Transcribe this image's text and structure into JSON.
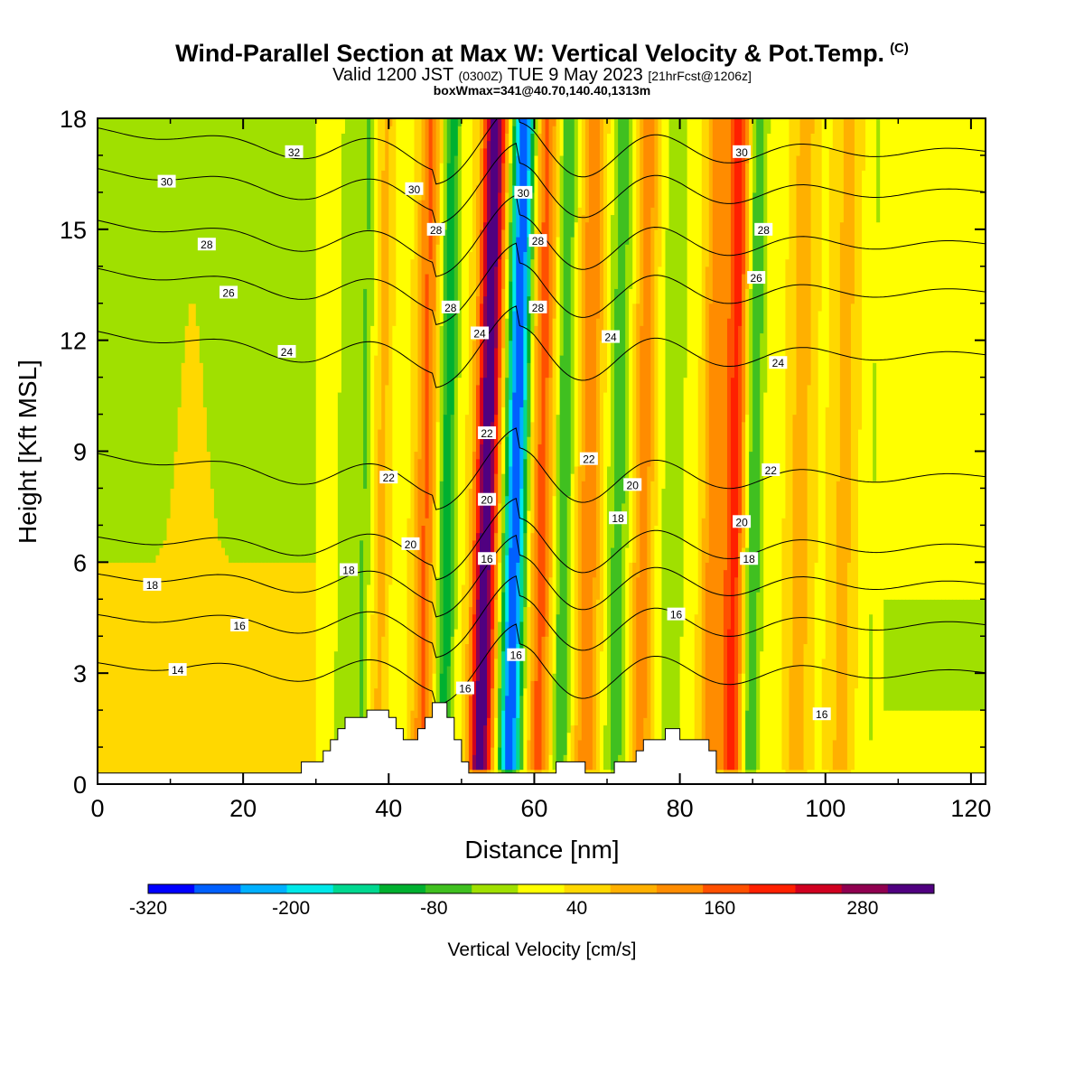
{
  "header": {
    "title": "Wind-Parallel Section at Max W: Vertical Velocity & Pot.Temp.",
    "copyright": "(C)",
    "valid_main": "Valid 1200 JST",
    "valid_utc": "(0300Z)",
    "valid_date": "TUE 9 May 2023",
    "forecast": "[21hrFcst@1206z]",
    "box_info": "boxWmax=341@40.70,140.40,1313m"
  },
  "chart_data": {
    "type": "heatmap",
    "xlabel": "Distance [nm]",
    "ylabel": "Height [Kft MSL]",
    "xlim": [
      0,
      122
    ],
    "ylim": [
      0,
      18
    ],
    "x_ticks": [
      "0",
      "20",
      "40",
      "60",
      "80",
      "100",
      "120"
    ],
    "y_ticks": [
      "0",
      "3",
      "6",
      "9",
      "12",
      "15",
      "18"
    ],
    "colorbar": {
      "label": "Vertical Velocity [cm/s]",
      "tick_labels": [
        "-320",
        "-200",
        "-80",
        "40",
        "160",
        "280"
      ],
      "bounds": [
        -320,
        340
      ],
      "colors": [
        "#0000ff",
        "#0060ff",
        "#00b0ff",
        "#00e8e8",
        "#00d890",
        "#00b030",
        "#40c020",
        "#a0e000",
        "#ffff00",
        "#ffd800",
        "#ffb000",
        "#ff8c00",
        "#ff5000",
        "#ff2000",
        "#d00020",
        "#900050",
        "#500080"
      ]
    },
    "velocity_features": [
      {
        "x": 52.5,
        "w": 1.6,
        "value": 320
      },
      {
        "x": 56.5,
        "w": 1.5,
        "value": -300
      },
      {
        "x": 47.5,
        "w": 1.2,
        "value": -130
      },
      {
        "x": 44.5,
        "w": 1.4,
        "value": 130
      },
      {
        "x": 60.5,
        "w": 1.5,
        "value": 140
      },
      {
        "x": 63.5,
        "w": 1.2,
        "value": -100
      },
      {
        "x": 67.0,
        "w": 1.5,
        "value": 120
      },
      {
        "x": 71.0,
        "w": 1.4,
        "value": -90
      },
      {
        "x": 74.5,
        "w": 1.4,
        "value": 110
      },
      {
        "x": 84.0,
        "w": 1.4,
        "value": 110
      },
      {
        "x": 87.0,
        "w": 1.6,
        "value": 180
      },
      {
        "x": 89.5,
        "w": 1.3,
        "value": -110
      },
      {
        "x": 36.0,
        "w": 1.0,
        "value": -70
      },
      {
        "x": 38.5,
        "w": 1.0,
        "value": 60
      },
      {
        "x": 33.5,
        "w": 1.2,
        "value": -60
      },
      {
        "x": 96.0,
        "w": 1.6,
        "value": 70
      },
      {
        "x": 102.0,
        "w": 1.8,
        "value": 60
      },
      {
        "x": 78.5,
        "w": 2.0,
        "value": -50
      },
      {
        "x": 106.0,
        "w": 1.6,
        "value": -30
      }
    ],
    "contours": [
      {
        "label": "14",
        "value": 14,
        "z": 3.0
      },
      {
        "label": "16",
        "value": 16,
        "z": 4.3
      },
      {
        "label": "18",
        "value": 18,
        "z": 5.4
      },
      {
        "label": "20",
        "value": 20,
        "z": 6.4
      },
      {
        "label": "22",
        "value": 22,
        "z": 8.3
      },
      {
        "label": "24",
        "value": 24,
        "z": 11.6
      },
      {
        "label": "26",
        "value": 26,
        "z": 13.3
      },
      {
        "label": "28",
        "value": 28,
        "z": 14.6
      },
      {
        "label": "30",
        "value": 30,
        "z": 16.0
      },
      {
        "label": "32",
        "value": 32,
        "z": 17.1
      }
    ],
    "contour_labels": [
      {
        "text": "32",
        "x": 27,
        "y": 17.1
      },
      {
        "text": "30",
        "x": 9.5,
        "y": 16.3
      },
      {
        "text": "28",
        "x": 15,
        "y": 14.6
      },
      {
        "text": "26",
        "x": 18,
        "y": 13.3
      },
      {
        "text": "24",
        "x": 26,
        "y": 11.7
      },
      {
        "text": "22",
        "x": 40,
        "y": 8.3
      },
      {
        "text": "20",
        "x": 43,
        "y": 6.5
      },
      {
        "text": "18",
        "x": 34.5,
        "y": 5.8
      },
      {
        "text": "18",
        "x": 7.5,
        "y": 5.4
      },
      {
        "text": "16",
        "x": 19.5,
        "y": 4.3
      },
      {
        "text": "14",
        "x": 11,
        "y": 3.1
      },
      {
        "text": "30",
        "x": 43.5,
        "y": 16.1
      },
      {
        "text": "28",
        "x": 46.5,
        "y": 15.0
      },
      {
        "text": "28",
        "x": 48.5,
        "y": 12.9
      },
      {
        "text": "24",
        "x": 52.5,
        "y": 12.2
      },
      {
        "text": "22",
        "x": 53.5,
        "y": 9.5
      },
      {
        "text": "20",
        "x": 53.5,
        "y": 7.7
      },
      {
        "text": "16",
        "x": 53.5,
        "y": 6.1
      },
      {
        "text": "16",
        "x": 50.5,
        "y": 2.6
      },
      {
        "text": "16",
        "x": 57.5,
        "y": 3.5
      },
      {
        "text": "30",
        "x": 58.5,
        "y": 16.0
      },
      {
        "text": "28",
        "x": 60.5,
        "y": 14.7
      },
      {
        "text": "28",
        "x": 60.5,
        "y": 12.9
      },
      {
        "text": "24",
        "x": 70.5,
        "y": 12.1
      },
      {
        "text": "22",
        "x": 67.5,
        "y": 8.8
      },
      {
        "text": "20",
        "x": 73.5,
        "y": 8.1
      },
      {
        "text": "18",
        "x": 71.5,
        "y": 7.2
      },
      {
        "text": "16",
        "x": 79.5,
        "y": 4.6
      },
      {
        "text": "30",
        "x": 88.5,
        "y": 17.1
      },
      {
        "text": "28",
        "x": 91.5,
        "y": 15.0
      },
      {
        "text": "26",
        "x": 90.5,
        "y": 13.7
      },
      {
        "text": "24",
        "x": 93.5,
        "y": 11.4
      },
      {
        "text": "22",
        "x": 92.5,
        "y": 8.5
      },
      {
        "text": "20",
        "x": 88.5,
        "y": 7.1
      },
      {
        "text": "18",
        "x": 89.5,
        "y": 6.1
      },
      {
        "text": "16",
        "x": 99.5,
        "y": 1.9
      }
    ],
    "terrain": [
      [
        0,
        0.3
      ],
      [
        28,
        0.3
      ],
      [
        28,
        0.6
      ],
      [
        31,
        0.6
      ],
      [
        31,
        0.9
      ],
      [
        32,
        0.9
      ],
      [
        32,
        1.2
      ],
      [
        33,
        1.2
      ],
      [
        33,
        1.5
      ],
      [
        34,
        1.5
      ],
      [
        34,
        1.8
      ],
      [
        37,
        1.8
      ],
      [
        37,
        2.0
      ],
      [
        40,
        2.0
      ],
      [
        40,
        1.8
      ],
      [
        41,
        1.8
      ],
      [
        41,
        1.5
      ],
      [
        42,
        1.5
      ],
      [
        42,
        1.2
      ],
      [
        44,
        1.2
      ],
      [
        44,
        1.5
      ],
      [
        45,
        1.5
      ],
      [
        45,
        1.8
      ],
      [
        46,
        1.8
      ],
      [
        46,
        2.2
      ],
      [
        48,
        2.2
      ],
      [
        48,
        1.8
      ],
      [
        49,
        1.8
      ],
      [
        49,
        1.2
      ],
      [
        50,
        1.2
      ],
      [
        50,
        0.6
      ],
      [
        51,
        0.6
      ],
      [
        51,
        0.3
      ],
      [
        63,
        0.3
      ],
      [
        63,
        0.6
      ],
      [
        67,
        0.6
      ],
      [
        67,
        0.3
      ],
      [
        71,
        0.3
      ],
      [
        71,
        0.6
      ],
      [
        74,
        0.6
      ],
      [
        74,
        0.9
      ],
      [
        75,
        0.9
      ],
      [
        75,
        1.2
      ],
      [
        78,
        1.2
      ],
      [
        78,
        1.5
      ],
      [
        80,
        1.5
      ],
      [
        80,
        1.2
      ],
      [
        84,
        1.2
      ],
      [
        84,
        0.9
      ],
      [
        85,
        0.9
      ],
      [
        85,
        0.3
      ],
      [
        122,
        0.3
      ]
    ]
  }
}
